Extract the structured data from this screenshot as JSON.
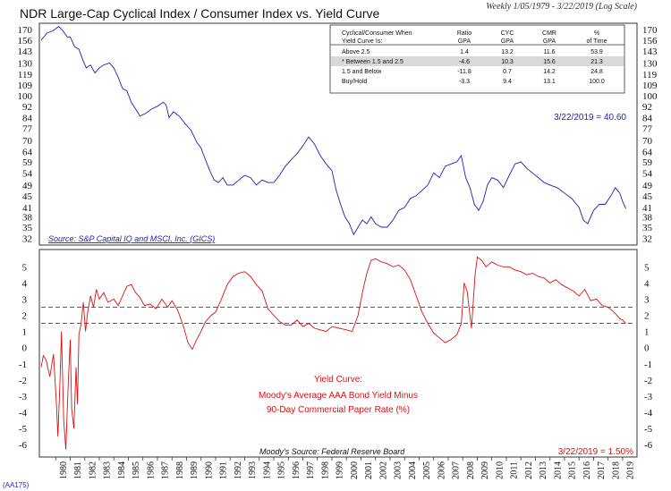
{
  "header": {
    "title": "NDR Large-Cap Cyclical Index / Consumer Index vs. Yield Curve",
    "subtitle": "Weekly 1/05/1979 - 3/22/2019 (Log Scale)"
  },
  "footer": {
    "code": "(AA175)"
  },
  "colors": {
    "top_line": "#1f1fb4",
    "bottom_line": "#dd1111",
    "ref_line": "#2e7d32",
    "source_text": "#1f1fb4",
    "annotation_text": "#dd1111",
    "table_highlight": "#d9d9d9"
  },
  "table": {
    "headers": [
      "Cyclical/Consumer When Yield Curve Is:",
      "Ratio GPA",
      "CYC GPA",
      "CMR GPA",
      "% of Time"
    ],
    "rows": [
      [
        "Above 2.5",
        "1.4",
        "13.2",
        "11.6",
        "53.9"
      ],
      [
        "* Between 1.5 and 2.5",
        "-4.6",
        "10.3",
        "15.6",
        "21.3"
      ],
      [
        "1.5 and Below",
        "-11.8",
        "0.7",
        "14.2",
        "24.8"
      ],
      [
        "Buy/Hold",
        "-3.3",
        "9.4",
        "13.1",
        "100.0"
      ]
    ],
    "highlight_row": 1
  },
  "chart_data": [
    {
      "type": "line",
      "title": "NDR Large-Cap Cyclical Index / Consumer Index vs. Yield Curve",
      "yscale": "log",
      "yticks": [
        32,
        35,
        38,
        41,
        45,
        49,
        54,
        59,
        64,
        70,
        77,
        84,
        92,
        100,
        109,
        119,
        130,
        143,
        156,
        170
      ],
      "ylim": [
        31,
        176
      ],
      "xlim": [
        1979.0,
        2019.25
      ],
      "grid": false,
      "series": [
        {
          "x": [
            1979.0,
            1979.4,
            1979.8,
            1980.2,
            1980.5,
            1980.8,
            1981.0,
            1981.3,
            1981.6,
            1981.9,
            1982.1,
            1982.4,
            1982.7,
            1983.0,
            1983.3,
            1983.7,
            1984.0,
            1984.3,
            1984.6,
            1984.9,
            1985.2,
            1985.5,
            1985.8,
            1986.2,
            1986.6,
            1987.0,
            1987.4,
            1987.6,
            1987.8,
            1988.1,
            1988.5,
            1988.9,
            1989.3,
            1989.7,
            1990.0,
            1990.3,
            1990.6,
            1990.9,
            1991.2,
            1991.5,
            1991.8,
            1992.2,
            1992.6,
            1993.0,
            1993.4,
            1993.8,
            1994.2,
            1994.6,
            1995.0,
            1995.4,
            1995.8,
            1996.2,
            1996.6,
            1997.0,
            1997.4,
            1997.8,
            1998.2,
            1998.6,
            1999.0,
            1999.3,
            1999.6,
            1999.9,
            2000.2,
            2000.5,
            2000.8,
            2001.1,
            2001.4,
            2001.7,
            2002.0,
            2002.4,
            2002.8,
            2003.2,
            2003.6,
            2004.0,
            2004.4,
            2004.8,
            2005.2,
            2005.6,
            2006.0,
            2006.4,
            2006.8,
            2007.2,
            2007.6,
            2007.9,
            2008.2,
            2008.5,
            2008.8,
            2009.1,
            2009.4,
            2009.7,
            2010.0,
            2010.4,
            2010.8,
            2011.2,
            2011.6,
            2012.0,
            2012.4,
            2012.8,
            2013.2,
            2013.6,
            2014.0,
            2014.5,
            2015.0,
            2015.5,
            2016.0,
            2016.3,
            2016.6,
            2017.0,
            2017.4,
            2017.8,
            2018.2,
            2018.5,
            2018.8,
            2019.0,
            2019.22
          ],
          "values": [
            156,
            165,
            168,
            174,
            168,
            160,
            160,
            148,
            145,
            132,
            125,
            128,
            120,
            125,
            128,
            130,
            125,
            116,
            106,
            104,
            95,
            90,
            85,
            87,
            90,
            92,
            95,
            93,
            84,
            88,
            85,
            80,
            76,
            69,
            66,
            60,
            55,
            51,
            50,
            52,
            49,
            49,
            51,
            53,
            52,
            49,
            51,
            50,
            50,
            53,
            57,
            60,
            63,
            67,
            72,
            68,
            62,
            58,
            55,
            47,
            42,
            38,
            36,
            33,
            35,
            37,
            36,
            38,
            36,
            35,
            35,
            37,
            40,
            41,
            44,
            45,
            47,
            49,
            54,
            52,
            57,
            58,
            59,
            62,
            52,
            48,
            42,
            40,
            43,
            49,
            52,
            51,
            48,
            53,
            58,
            59,
            56,
            54,
            52,
            50,
            49,
            48,
            46,
            44,
            41,
            37,
            36,
            40,
            42,
            42,
            45,
            48,
            46,
            43,
            40.6
          ]
        }
      ],
      "annotations": [
        "3/22/2019 = 40.60",
        "Source: S&P Capital IQ and MSCI, Inc. (GICS)"
      ]
    },
    {
      "type": "line",
      "yticks": [
        -6,
        -5,
        -4,
        -3,
        -2,
        -1,
        0,
        1,
        2,
        3,
        4,
        5
      ],
      "ylim": [
        -6.6,
        5.9
      ],
      "xlim": [
        1979.0,
        2019.25
      ],
      "xticks": [
        "1980",
        "1981",
        "1982",
        "1983",
        "1984",
        "1985",
        "1986",
        "1987",
        "1988",
        "1989",
        "1990",
        "1991",
        "1992",
        "1993",
        "1994",
        "1995",
        "1996",
        "1997",
        "1998",
        "1999",
        "2000",
        "2001",
        "2002",
        "2003",
        "2004",
        "2005",
        "2006",
        "2007",
        "2008",
        "2009",
        "2010",
        "2011",
        "2012",
        "2013",
        "2014",
        "2015",
        "2016",
        "2017",
        "2018",
        "2019"
      ],
      "reference_lines": [
        2.5,
        1.5
      ],
      "grid": false,
      "series": [
        {
          "x": [
            1979.0,
            1979.15,
            1979.35,
            1979.6,
            1979.85,
            1980.05,
            1980.15,
            1980.3,
            1980.4,
            1980.55,
            1980.7,
            1980.85,
            1981.0,
            1981.1,
            1981.25,
            1981.4,
            1981.5,
            1981.6,
            1981.75,
            1981.9,
            1982.05,
            1982.2,
            1982.4,
            1982.6,
            1982.8,
            1983.0,
            1983.3,
            1983.6,
            1984.0,
            1984.3,
            1984.6,
            1984.9,
            1985.2,
            1985.5,
            1985.8,
            1986.1,
            1986.5,
            1986.9,
            1987.3,
            1987.7,
            1988.0,
            1988.4,
            1988.8,
            1989.1,
            1989.4,
            1989.7,
            1990.0,
            1990.3,
            1990.7,
            1991.0,
            1991.4,
            1991.8,
            1992.2,
            1992.6,
            1993.0,
            1993.4,
            1993.8,
            1994.2,
            1994.6,
            1995.0,
            1995.4,
            1995.8,
            1996.2,
            1996.6,
            1997.0,
            1997.4,
            1997.8,
            1998.2,
            1998.6,
            1999.0,
            1999.5,
            2000.0,
            2000.4,
            2000.8,
            2001.1,
            2001.4,
            2001.7,
            2002.0,
            2002.4,
            2002.8,
            2003.2,
            2003.6,
            2004.0,
            2004.4,
            2004.8,
            2005.2,
            2005.6,
            2006.0,
            2006.4,
            2006.8,
            2007.2,
            2007.6,
            2007.9,
            2008.1,
            2008.3,
            2008.6,
            2008.85,
            2009.0,
            2009.3,
            2009.6,
            2010.0,
            2010.4,
            2010.8,
            2011.2,
            2011.6,
            2012.0,
            2012.4,
            2012.8,
            2013.2,
            2013.6,
            2014.0,
            2014.4,
            2014.8,
            2015.2,
            2015.6,
            2016.0,
            2016.4,
            2016.8,
            2017.2,
            2017.6,
            2018.0,
            2018.4,
            2018.8,
            2019.0,
            2019.22
          ],
          "values": [
            -1.2,
            -0.5,
            -0.8,
            -1.8,
            -0.4,
            -3.5,
            -5.5,
            -2.0,
            1.0,
            -4.5,
            -6.3,
            -2.5,
            0.5,
            -3.8,
            -5.0,
            -1.2,
            -3.5,
            0.8,
            1.5,
            2.8,
            1.0,
            2.2,
            3.2,
            2.5,
            3.6,
            3.0,
            3.4,
            2.8,
            3.0,
            2.6,
            3.2,
            3.8,
            3.9,
            3.4,
            3.1,
            2.6,
            2.7,
            2.4,
            3.0,
            2.5,
            2.9,
            2.3,
            1.3,
            0.3,
            -0.1,
            0.5,
            1.0,
            1.6,
            2.0,
            2.2,
            3.0,
            3.9,
            4.4,
            4.6,
            4.7,
            4.4,
            3.9,
            3.5,
            2.4,
            2.0,
            1.6,
            1.4,
            1.4,
            1.7,
            1.3,
            1.5,
            1.2,
            1.1,
            1.0,
            1.3,
            1.2,
            1.1,
            1.0,
            2.0,
            3.4,
            4.6,
            5.4,
            5.5,
            5.3,
            5.2,
            5.0,
            5.1,
            4.8,
            4.2,
            3.2,
            2.2,
            1.5,
            0.9,
            0.6,
            0.3,
            0.5,
            0.8,
            1.5,
            4.0,
            3.5,
            1.2,
            4.5,
            5.6,
            5.4,
            5.0,
            5.3,
            5.1,
            5.0,
            5.0,
            4.8,
            4.7,
            4.5,
            4.6,
            4.4,
            4.3,
            4.0,
            4.2,
            3.9,
            3.7,
            3.5,
            3.2,
            3.6,
            2.9,
            3.0,
            2.6,
            2.5,
            2.2,
            1.8,
            1.7,
            1.5
          ]
        }
      ],
      "annotations": [
        "Yield Curve:",
        "Moody's Average AAA Bond Yield Minus",
        "90-Day Commercial Paper Rate (%)",
        "Moody's Source: Federal Reserve Board",
        "3/22/2019 = 1.50%"
      ]
    }
  ]
}
